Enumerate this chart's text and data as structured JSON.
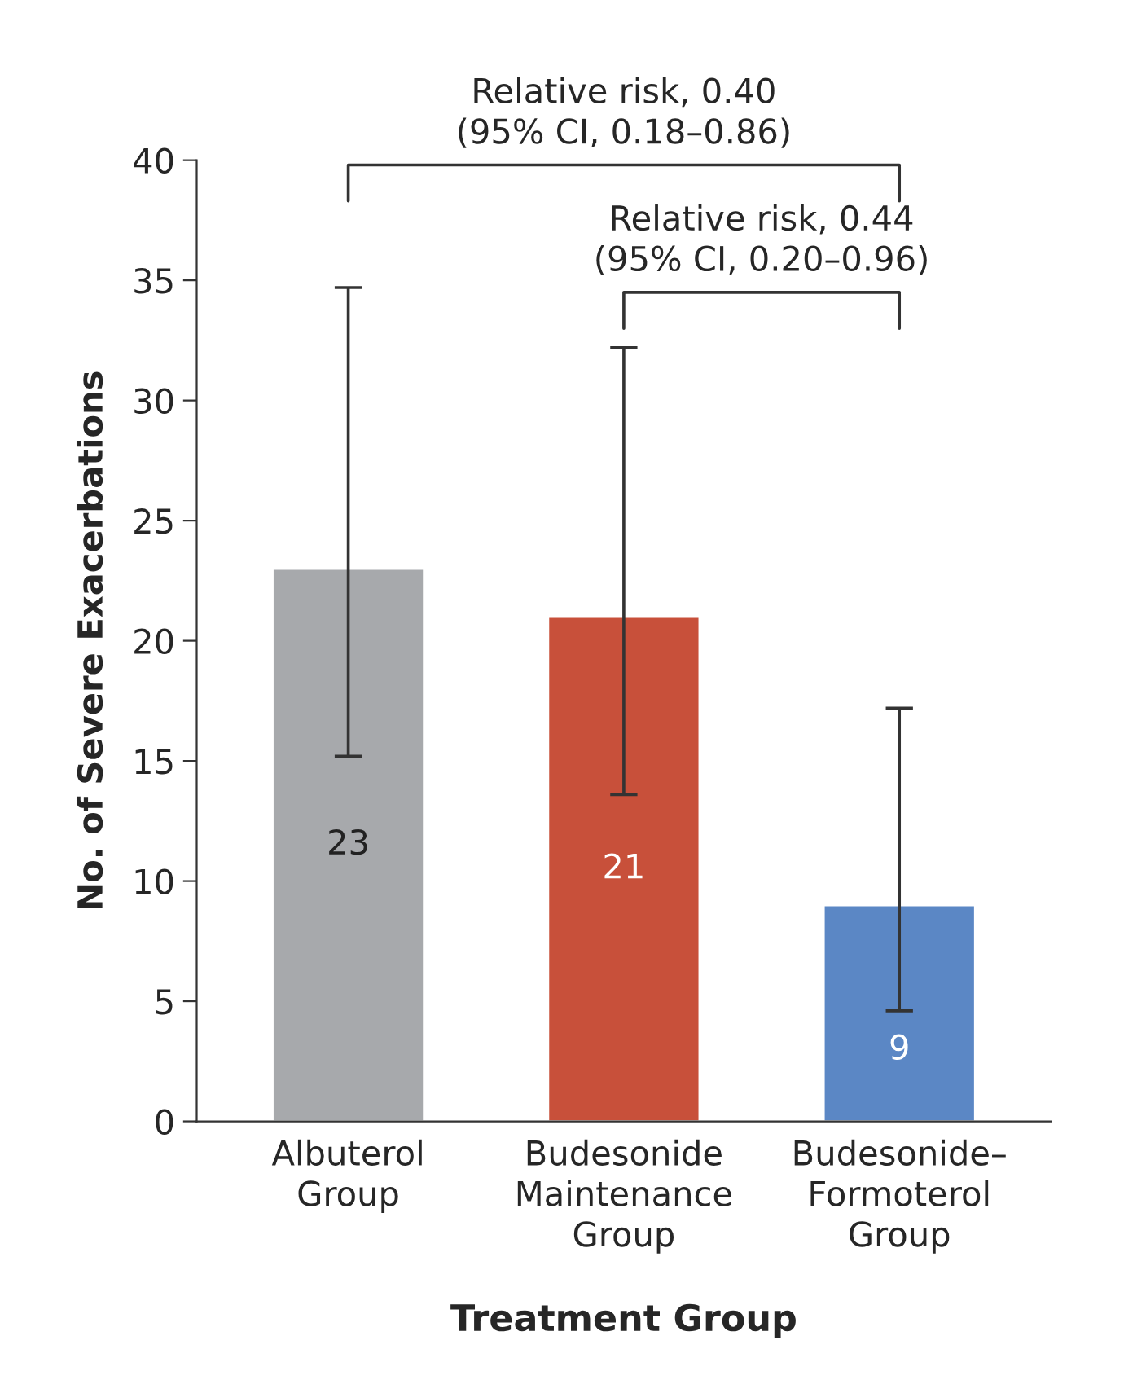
{
  "chart_data": {
    "type": "bar",
    "xlabel": "Treatment Group",
    "ylabel": "No. of Severe Exacerbations",
    "categories": [
      "Albuterol\nGroup",
      "Budesonide\nMaintenance\nGroup",
      "Budesonide–\nFormoterol\nGroup"
    ],
    "values": [
      23,
      21,
      9
    ],
    "colors": [
      "#a7a9ac",
      "#c8503a",
      "#5b87c5"
    ],
    "errors": [
      [
        15.2,
        34.7
      ],
      [
        13.6,
        32.2
      ],
      [
        4.6,
        17.2
      ]
    ],
    "data_labels": true,
    "ylim": [
      0,
      40
    ],
    "yticks": [
      0,
      5,
      10,
      15,
      20,
      25,
      30,
      35,
      40
    ],
    "grid": false,
    "annotations": [
      "Relative risk, 0.40\n(95% CI, 0.18–0.86)",
      "Relative risk, 0.44\n(95% CI, 0.20–0.96)"
    ]
  }
}
